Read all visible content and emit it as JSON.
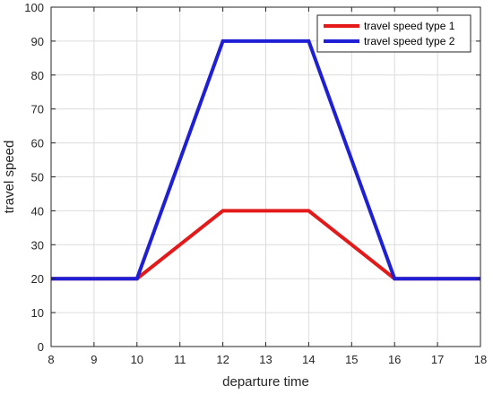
{
  "chart_data": {
    "type": "line",
    "title": "",
    "xlabel": "departure time",
    "ylabel": "travel speed",
    "xlim": [
      8,
      18
    ],
    "ylim": [
      0,
      100
    ],
    "x_ticks": [
      8,
      9,
      10,
      11,
      12,
      13,
      14,
      15,
      16,
      17,
      18
    ],
    "y_ticks": [
      0,
      10,
      20,
      30,
      40,
      50,
      60,
      70,
      80,
      90,
      100
    ],
    "grid": true,
    "legend_position": "top-right",
    "series": [
      {
        "name": "travel speed type 1",
        "color": "#e41a1a",
        "x": [
          8,
          10,
          12,
          14,
          16,
          18
        ],
        "y": [
          20,
          20,
          40,
          40,
          20,
          20
        ]
      },
      {
        "name": "travel speed type 2",
        "color": "#1f1fd6",
        "x": [
          8,
          10,
          12,
          14,
          16,
          18
        ],
        "y": [
          20,
          20,
          90,
          90,
          20,
          20
        ]
      }
    ]
  }
}
